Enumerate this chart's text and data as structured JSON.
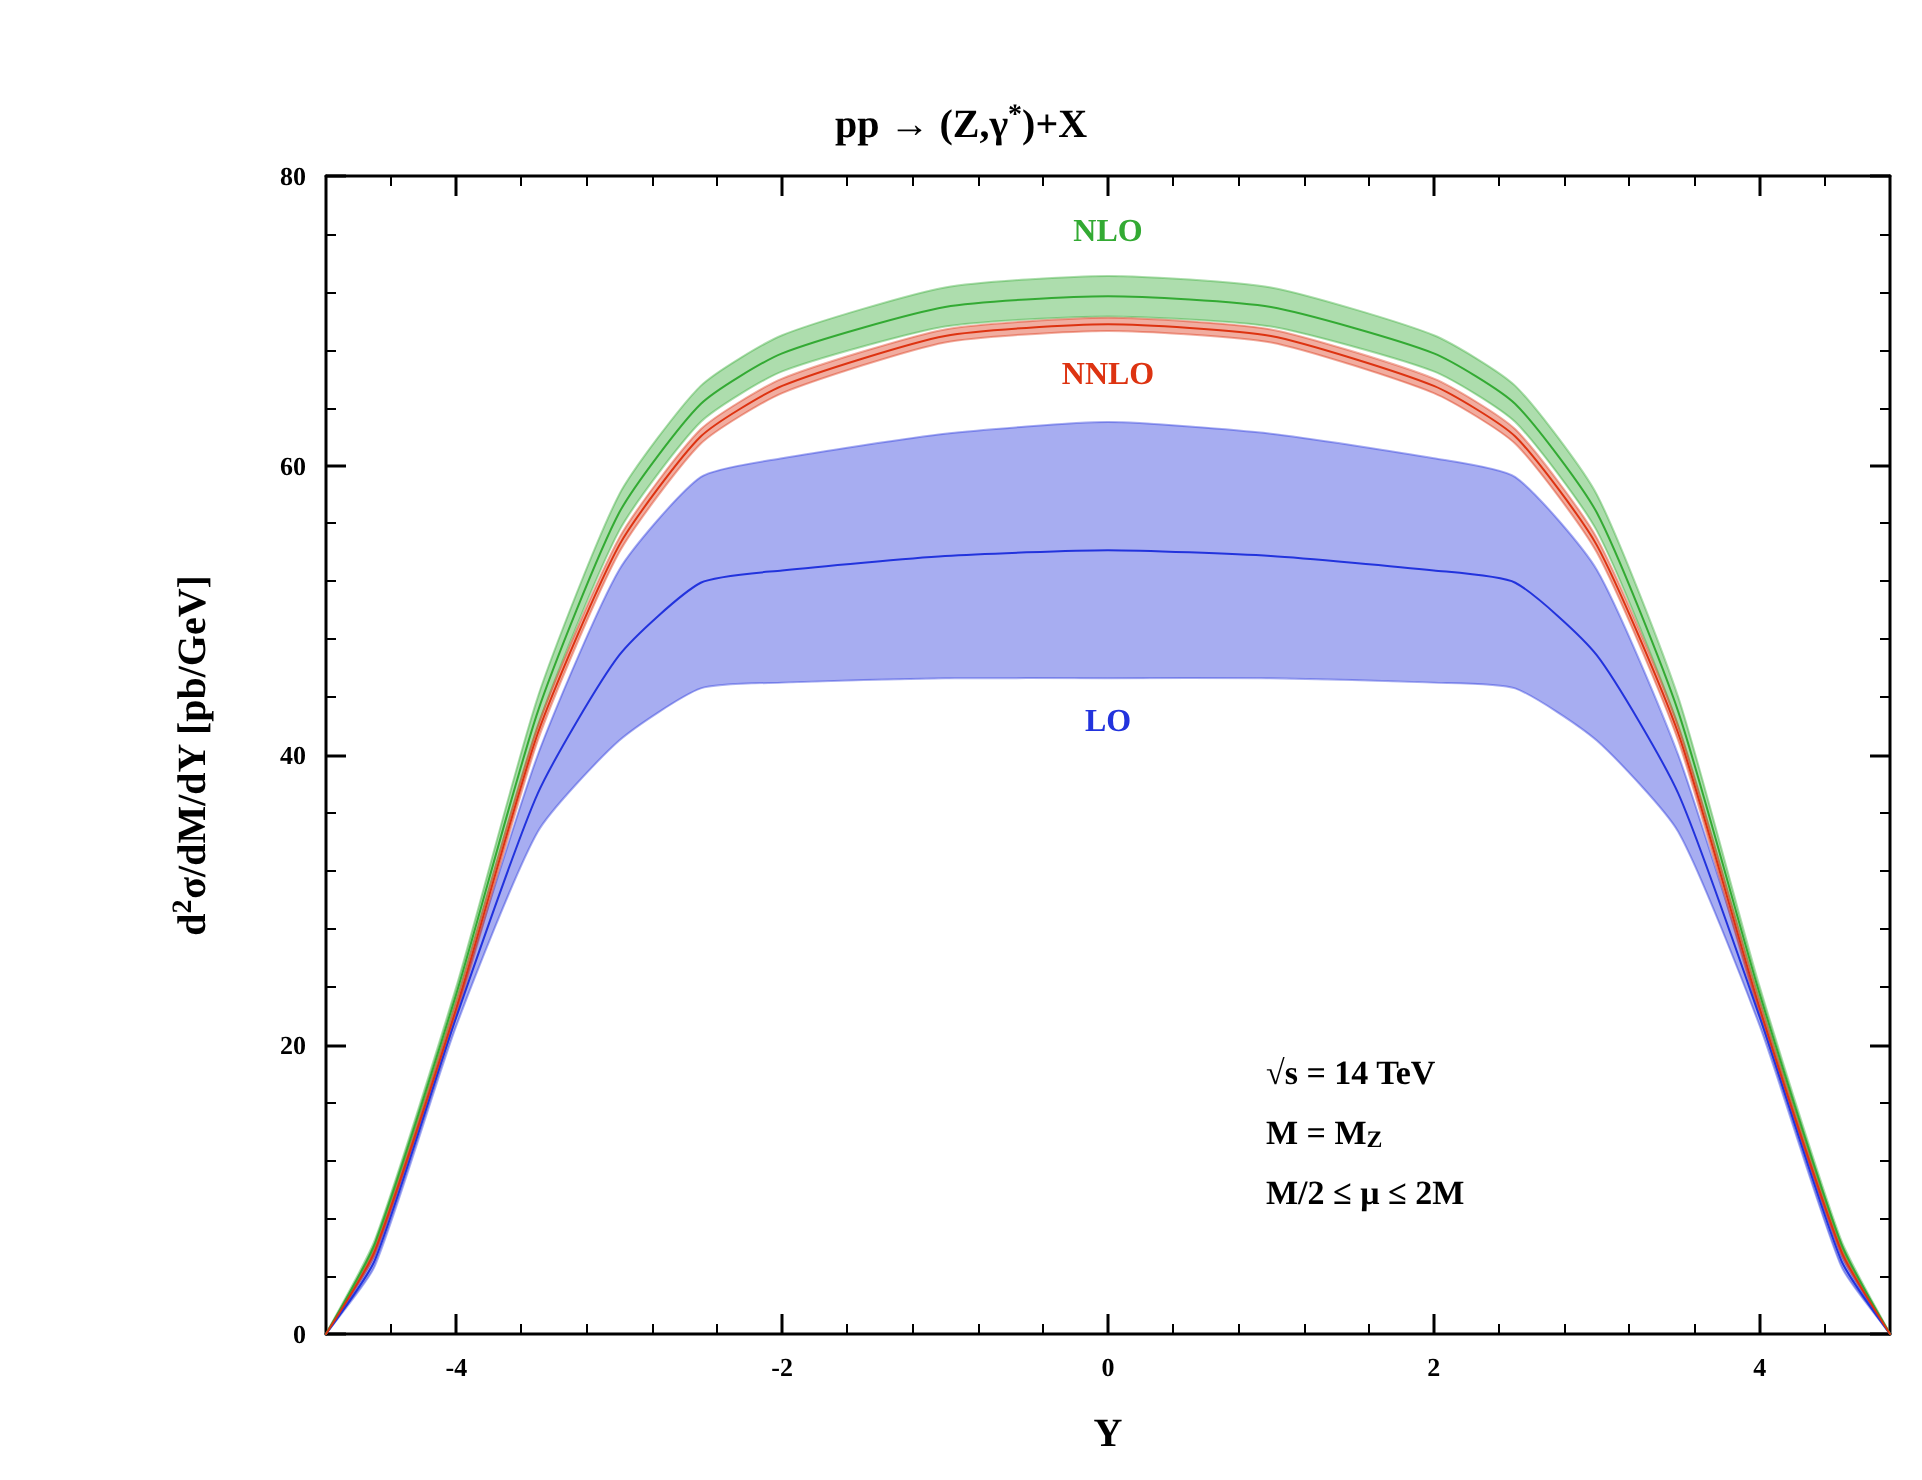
{
  "chart_data": {
    "type": "line",
    "title": "pp → (Z,γ$^{*}$)+X",
    "xlabel": "Y",
    "ylabel": "d$^{2}$σ/dM/dY [pb/GeV]",
    "x": [
      -4.8,
      -4.5,
      -4,
      -3.5,
      -3,
      -2.5,
      -2,
      -1,
      0,
      1,
      2,
      2.5,
      3,
      3.5,
      4,
      4.5,
      4.8
    ],
    "series": [
      {
        "name": "LO",
        "color": "#2233dd",
        "values": [
          0,
          5.1,
          21.9,
          37.35,
          46.9,
          51.9,
          52.75,
          53.75,
          54.15,
          53.75,
          52.75,
          51.9,
          46.9,
          37.35,
          21.9,
          5.1,
          0
        ],
        "lower": [
          0,
          4.7,
          21.3,
          34.7,
          41,
          44.6,
          45,
          45.3,
          45.3,
          45.3,
          45,
          44.6,
          41,
          34.7,
          21.3,
          4.7,
          0
        ],
        "upper": [
          0,
          5.5,
          22.5,
          40,
          52.8,
          59.2,
          60.5,
          62.2,
          63,
          62.2,
          60.5,
          59.2,
          52.8,
          40,
          22.5,
          5.5,
          0
        ]
      },
      {
        "name": "NLO",
        "color": "#33aa33",
        "values": [
          0,
          6.25,
          23.5,
          43,
          56.75,
          64.25,
          67.75,
          70.95,
          71.7,
          70.95,
          67.75,
          64.25,
          56.75,
          43,
          23.5,
          6.25,
          0
        ],
        "lower": [
          0,
          6,
          23,
          42,
          55.5,
          63,
          66.5,
          69.6,
          70.3,
          69.6,
          66.5,
          63,
          55.5,
          42,
          23,
          6,
          0
        ],
        "upper": [
          0,
          6.5,
          24,
          44,
          58,
          65.5,
          69,
          72.3,
          73.1,
          72.3,
          69,
          65.5,
          58,
          44,
          24,
          6.5,
          0
        ]
      },
      {
        "name": "NNLO",
        "color": "#dd3311",
        "values": [
          0,
          5.75,
          22.5,
          41.5,
          54.5,
          62,
          65.5,
          68.95,
          69.75,
          68.95,
          65.5,
          62,
          54.5,
          41.5,
          22.5,
          5.75,
          0
        ],
        "lower": [
          0,
          5.5,
          22,
          41,
          54,
          61.5,
          65,
          68.5,
          69.3,
          68.5,
          65,
          61.5,
          54,
          41,
          22,
          5.5,
          0
        ],
        "upper": [
          0,
          6,
          23,
          42,
          55,
          62.5,
          66,
          69.4,
          70.2,
          69.4,
          66,
          62.5,
          55,
          42,
          23,
          6,
          0
        ]
      }
    ],
    "xlim": [
      -4.8,
      4.8
    ],
    "xticks": [
      -4,
      -2,
      0,
      2,
      4
    ],
    "ylim": [
      0,
      80
    ],
    "yticks": [
      0,
      20,
      40,
      60,
      80
    ],
    "annotations": [
      "√s = 14 TeV",
      "M = M$_{Z}$",
      "M/2 ≤ μ ≤ 2M"
    ],
    "grid": false,
    "legend": false,
    "marker": "none",
    "line_style": "solid"
  }
}
